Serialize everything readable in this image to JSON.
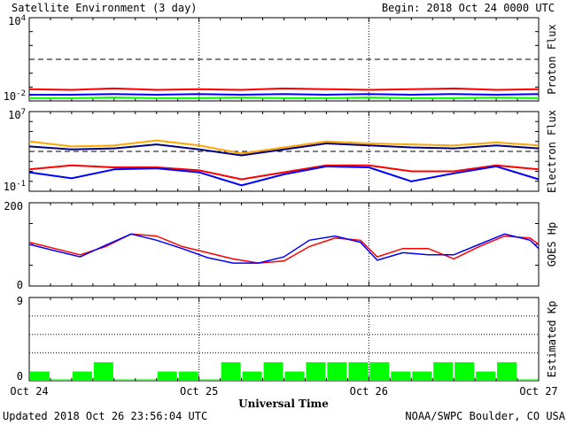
{
  "header": {
    "title": "Satellite Environment (3 day)",
    "begin": "Begin:  2018 Oct 24 0000 UTC"
  },
  "footer": {
    "updated": "Updated 2018 Oct 26 23:56:04 UTC",
    "credit": "NOAA/SWPC Boulder, CO USA"
  },
  "xaxis": {
    "label": "Universal Time",
    "ticks": [
      "Oct 24",
      "Oct 25",
      "Oct 26",
      "Oct 27"
    ]
  },
  "colors": {
    "red": "#ff0000",
    "blue": "#0000ff",
    "green": "#00ff00",
    "orange": "#ffa500",
    "navy": "#000080"
  },
  "chart_data": [
    {
      "type": "line",
      "ylabel": "Proton Flux",
      "scale": "log",
      "yticks": [
        {
          "base": "10",
          "exp": "4",
          "value": 4
        },
        {
          "base": "10",
          "exp": "-2",
          "value": -2
        }
      ],
      "ylim_log10": [
        -2,
        4
      ],
      "threshold_log10": 1,
      "x_days": [
        0,
        0.25,
        0.5,
        0.75,
        1,
        1.25,
        1.5,
        1.75,
        2,
        2.25,
        2.5,
        2.75,
        3
      ],
      "series": [
        {
          "color": "#ff0000",
          "values_log10": [
            -1.15,
            -1.2,
            -1.1,
            -1.2,
            -1.15,
            -1.2,
            -1.1,
            -1.15,
            -1.2,
            -1.15,
            -1.1,
            -1.2,
            -1.15
          ]
        },
        {
          "color": "#0000ff",
          "values_log10": [
            -1.55,
            -1.55,
            -1.5,
            -1.55,
            -1.5,
            -1.55,
            -1.5,
            -1.55,
            -1.5,
            -1.55,
            -1.5,
            -1.55,
            -1.5
          ]
        },
        {
          "color": "#00ff00",
          "values_log10": [
            -1.8,
            -1.8,
            -1.75,
            -1.8,
            -1.8,
            -1.75,
            -1.8,
            -1.8,
            -1.75,
            -1.8,
            -1.8,
            -1.75,
            -1.8
          ]
        }
      ]
    },
    {
      "type": "line",
      "ylabel": "Electron Flux",
      "scale": "log",
      "yticks": [
        {
          "base": "10",
          "exp": "7",
          "value": 7
        },
        {
          "base": "10",
          "exp": "-1",
          "value": -1
        }
      ],
      "ylim_log10": [
        -1,
        7
      ],
      "threshold_log10": 3,
      "x_days": [
        0,
        0.25,
        0.5,
        0.75,
        1,
        1.25,
        1.5,
        1.75,
        2,
        2.25,
        2.5,
        2.75,
        3
      ],
      "series": [
        {
          "color": "#ffa500",
          "values_log10": [
            4.0,
            3.5,
            3.6,
            4.1,
            3.6,
            2.8,
            3.4,
            4.0,
            3.8,
            3.7,
            3.6,
            3.9,
            3.6
          ]
        },
        {
          "color": "#000080",
          "values_log10": [
            3.5,
            3.2,
            3.3,
            3.7,
            3.2,
            2.6,
            3.2,
            3.8,
            3.6,
            3.4,
            3.3,
            3.6,
            3.3
          ]
        },
        {
          "color": "#ff0000",
          "values_log10": [
            1.2,
            1.6,
            1.4,
            1.4,
            1.1,
            0.2,
            0.9,
            1.6,
            1.6,
            1.0,
            1.0,
            1.6,
            1.2
          ]
        },
        {
          "color": "#0000ff",
          "values_log10": [
            0.9,
            0.3,
            1.2,
            1.3,
            0.9,
            -0.4,
            0.7,
            1.5,
            1.4,
            0.0,
            0.8,
            1.5,
            0.2
          ]
        }
      ]
    },
    {
      "type": "line",
      "ylabel": "GOES Hp",
      "yticks": [
        200,
        0
      ],
      "ylim": [
        0,
        200
      ],
      "x_days": [
        0,
        0.15,
        0.3,
        0.45,
        0.6,
        0.75,
        0.9,
        1.05,
        1.2,
        1.35,
        1.5,
        1.65,
        1.8,
        1.95,
        2.05,
        2.2,
        2.35,
        2.5,
        2.65,
        2.8,
        2.95,
        3
      ],
      "series": [
        {
          "color": "#ff0000",
          "values": [
            105,
            90,
            75,
            95,
            125,
            120,
            95,
            80,
            65,
            55,
            60,
            95,
            115,
            110,
            70,
            90,
            90,
            65,
            95,
            120,
            115,
            100
          ]
        },
        {
          "color": "#0000ff",
          "values": [
            100,
            85,
            70,
            98,
            125,
            110,
            90,
            68,
            55,
            55,
            70,
            110,
            120,
            105,
            62,
            80,
            75,
            75,
            100,
            125,
            110,
            90
          ]
        }
      ]
    },
    {
      "type": "bar",
      "ylabel": "Estimated Kp",
      "yticks": [
        9,
        0
      ],
      "ylim": [
        0,
        9
      ],
      "gridlines": [
        3,
        5,
        7
      ],
      "bar_color": "#00ff00",
      "values": [
        1,
        0,
        1,
        2,
        0,
        0,
        1,
        1,
        0,
        2,
        1,
        2,
        1,
        2,
        2,
        2,
        2,
        1,
        1,
        2,
        2,
        1,
        2,
        0
      ]
    }
  ]
}
